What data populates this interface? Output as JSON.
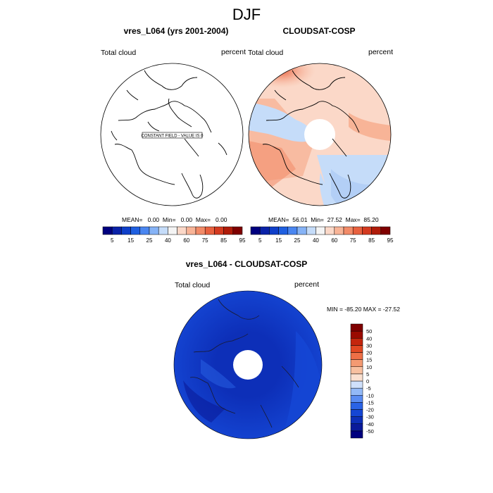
{
  "page_title": "DJF",
  "chart_data": [
    {
      "type": "heatmap",
      "title": "vres_L064 (yrs 2001-2004)",
      "left_label": "Total cloud",
      "right_label": "percent",
      "field_note": "CONSTANT FIELD - VALUE IS 0",
      "stats": "MEAN=   0.00  Min=   0.00  Max=   0.00",
      "colorbar": {
        "colors": [
          "#00007f",
          "#0a22a8",
          "#0f3fc9",
          "#1f5fe0",
          "#4a86f0",
          "#86b3f6",
          "#c5dcf9",
          "#f4f4f4",
          "#fbd8c8",
          "#f8b497",
          "#f28b68",
          "#e8613f",
          "#d43a20",
          "#b01c0a",
          "#7f0000"
        ],
        "tick_labels": [
          "5",
          "15",
          "25",
          "40",
          "60",
          "75",
          "85",
          "95"
        ]
      }
    },
    {
      "type": "heatmap",
      "title": "CLOUDSAT-COSP",
      "left_label": "Total cloud",
      "right_label": "percent",
      "stats": "MEAN=  56.01  Min=  27.52  Max=  85.20",
      "colorbar": {
        "colors": [
          "#00007f",
          "#0a22a8",
          "#0f3fc9",
          "#1f5fe0",
          "#4a86f0",
          "#86b3f6",
          "#c5dcf9",
          "#f4f4f4",
          "#fbd8c8",
          "#f8b497",
          "#f28b68",
          "#e8613f",
          "#d43a20",
          "#b01c0a",
          "#7f0000"
        ],
        "tick_labels": [
          "5",
          "15",
          "25",
          "40",
          "60",
          "75",
          "85",
          "95"
        ]
      }
    },
    {
      "type": "heatmap",
      "title": "vres_L064 - CLOUDSAT-COSP",
      "left_label": "Total cloud",
      "right_label": "percent",
      "minmax": "MIN = -85.20 MAX = -27.52",
      "colorbar": {
        "colors": [
          "#00007f",
          "#0a1a9a",
          "#0d2fb8",
          "#1546d4",
          "#2a63e6",
          "#5a8cf2",
          "#93b9f7",
          "#cfe0fb",
          "#fbe0d0",
          "#f8c0a0",
          "#f49a72",
          "#ee6f46",
          "#e14822",
          "#c4260d",
          "#9a0a00",
          "#7f0000"
        ],
        "tick_labels": [
          "50",
          "40",
          "30",
          "20",
          "15",
          "10",
          "5",
          "0",
          "-5",
          "-10",
          "-15",
          "-20",
          "-30",
          "-40",
          "-50"
        ]
      }
    }
  ]
}
